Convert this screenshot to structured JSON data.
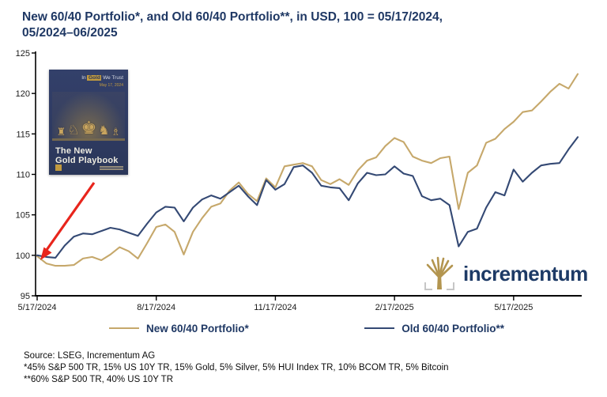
{
  "title": {
    "line1": "New 60/40 Portfolio*, and Old 60/40 Portfolio**, in USD, 100 = 05/17/2024,",
    "line2": "05/2024–06/2025"
  },
  "book": {
    "brand_pre": "In",
    "brand_gold": "Gold",
    "brand_post": "We Trust",
    "date": "May 17, 2024",
    "chess_glyphs": "♜ ♘ ♚ ♞ ♗",
    "title_line1": "The New",
    "title_line2": "Gold Playbook"
  },
  "logo": {
    "text": "incrementum"
  },
  "legend": [
    {
      "label": "New 60/40 Portfolio*",
      "color": "#C6A86B"
    },
    {
      "label": "Old 60/40 Portfolio**",
      "color": "#344974"
    }
  ],
  "source": {
    "line1": "Source: LSEG, Incrementum AG",
    "line2": "*45% S&P 500 TR, 15% US 10Y TR, 15% Gold, 5% Silver, 5% HUI Index TR, 10% BCOM TR, 5% Bitcoin",
    "line3": "**60% S&P 500 TR, 40% US 10Y TR"
  },
  "chart_data": {
    "type": "line",
    "title": "New 60/40 Portfolio*, and Old 60/40 Portfolio**, in USD, 100 = 05/17/2024, 05/2024–06/2025",
    "xlabel": "",
    "ylabel": "",
    "ylim": [
      95,
      125
    ],
    "y_ticks": [
      95,
      100,
      105,
      110,
      115,
      120,
      125
    ],
    "grid": false,
    "legend_position": "bottom",
    "x_unit": "weekly, 5/17/2024 to end of 6/2025",
    "x_total_weeks": 59,
    "x_tick_weeks": [
      0,
      13,
      26,
      39,
      52
    ],
    "x_tick_labels": [
      "5/17/2024",
      "8/17/2024",
      "11/17/2024",
      "2/17/2025",
      "5/17/2025"
    ],
    "series": [
      {
        "name": "New 60/40 Portfolio*",
        "color": "#C6A86B",
        "values": [
          99.9,
          99.0,
          98.7,
          98.7,
          98.8,
          99.6,
          99.8,
          99.4,
          100.1,
          101.0,
          100.5,
          99.6,
          101.5,
          103.5,
          103.8,
          102.9,
          100.1,
          102.9,
          104.6,
          106.0,
          106.4,
          108.0,
          109.0,
          107.6,
          106.7,
          109.5,
          108.4,
          111.0,
          111.2,
          111.4,
          111.0,
          109.3,
          108.8,
          109.4,
          108.7,
          110.5,
          111.7,
          112.1,
          113.5,
          114.5,
          114.0,
          112.2,
          111.7,
          111.4,
          112.0,
          112.2,
          105.7,
          110.2,
          111.1,
          113.9,
          114.4,
          115.6,
          116.5,
          117.7,
          117.9,
          119.0,
          120.2,
          121.2,
          120.6,
          122.4
        ]
      },
      {
        "name": "Old 60/40 Portfolio**",
        "color": "#344974",
        "values": [
          100.0,
          99.8,
          99.7,
          101.2,
          102.3,
          102.7,
          102.6,
          103.0,
          103.4,
          103.2,
          102.8,
          102.4,
          103.9,
          105.3,
          106.0,
          105.9,
          104.2,
          105.9,
          106.9,
          107.4,
          107.0,
          107.8,
          108.6,
          107.3,
          106.2,
          109.3,
          108.1,
          108.8,
          110.9,
          111.1,
          110.2,
          108.6,
          108.4,
          108.3,
          106.8,
          108.9,
          110.2,
          109.9,
          110.0,
          111.0,
          110.1,
          109.8,
          107.3,
          106.8,
          107.0,
          106.2,
          101.1,
          102.9,
          103.3,
          105.9,
          107.8,
          107.4,
          110.6,
          109.1,
          110.2,
          111.1,
          111.3,
          111.4,
          113.1,
          114.6
        ]
      }
    ],
    "annotations": [
      {
        "type": "arrow",
        "color": "#e8251c",
        "note": "red arrow from book cover to index start (100 on 5/17/2024)"
      }
    ]
  }
}
